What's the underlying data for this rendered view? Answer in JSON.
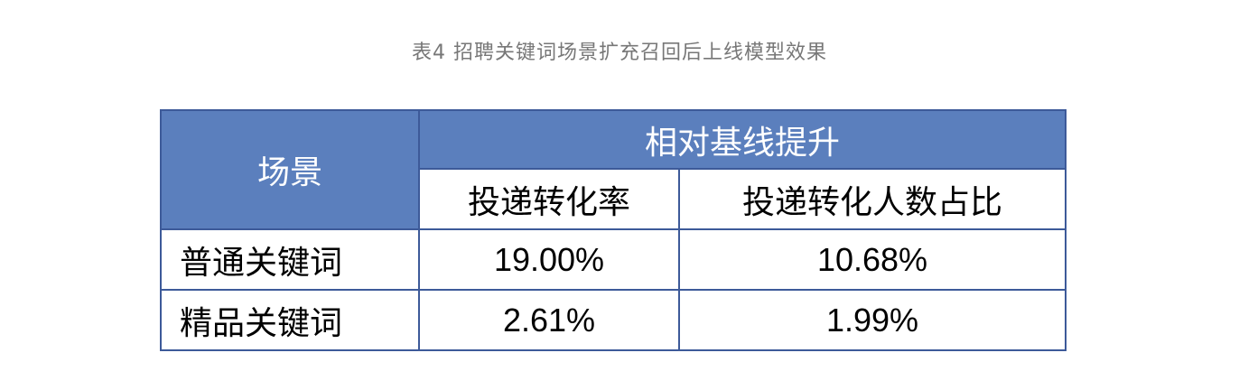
{
  "caption": "表4 招聘关键词场景扩充召回后上线模型效果",
  "table": {
    "scene_header": "场景",
    "group_header": "相对基线提升",
    "columns": [
      "投递转化率",
      "投递转化人数占比"
    ],
    "rows": [
      {
        "label": "普通关键词",
        "values": [
          "19.00%",
          "10.68%"
        ]
      },
      {
        "label": "精品关键词",
        "values": [
          "2.61%",
          "1.99%"
        ]
      }
    ]
  },
  "colors": {
    "header_bg": "#5b7fbd",
    "border": "#3d5a99",
    "caption_text": "#777777"
  }
}
